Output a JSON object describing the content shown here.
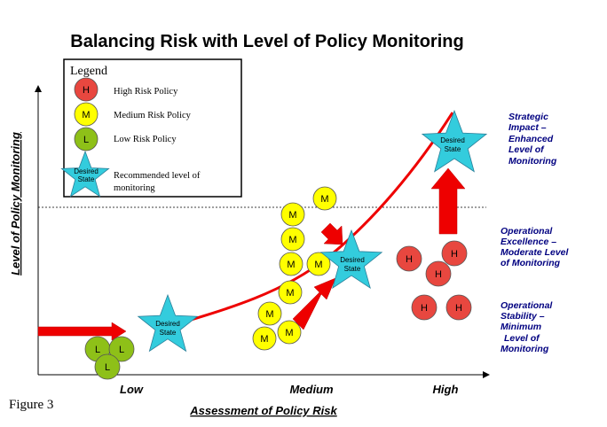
{
  "title": "Balancing Risk with Level of Policy Monitoring",
  "y_axis_label": "Level of Policy Monitoring",
  "x_axis_label": "Assessment of Policy Risk",
  "x_ticks": [
    "Low",
    "Medium",
    "High"
  ],
  "figure_label": "Figure 3",
  "legend": {
    "title": "Legend",
    "items": [
      {
        "symbol": "H",
        "label": "High Risk Policy",
        "color": "#e8473f"
      },
      {
        "symbol": "M",
        "label": "Medium Risk Policy",
        "color": "#ffff00"
      },
      {
        "symbol": "L",
        "label": "Low Risk Policy",
        "color": "#8ec018"
      },
      {
        "symbol": "Desired State",
        "label_line1": "Recommended level of",
        "label_line2": "monitoring",
        "color": "#33ccdd"
      }
    ]
  },
  "right_labels": [
    {
      "lines": [
        "Strategic",
        "Impact –",
        "Enhanced",
        "Level of",
        "Monitoring"
      ]
    },
    {
      "lines": [
        "Operational",
        "Excellence –",
        "Moderate Level",
        "of Monitoring"
      ]
    },
    {
      "lines": [
        "Operational",
        "Stability –",
        "Minimum",
        "Level of",
        "Monitoring"
      ]
    }
  ],
  "star_label_line1": "Desired",
  "star_label_line2": "State",
  "circle_letters": {
    "high": "H",
    "medium": "M",
    "low": "L"
  },
  "colors": {
    "high": "#e8473f",
    "medium": "#ffff00",
    "low": "#8ec018",
    "star": "#33ccdd",
    "curve": "#ee0000",
    "arrow": "#ee0000",
    "right_label_text": "#000080"
  }
}
